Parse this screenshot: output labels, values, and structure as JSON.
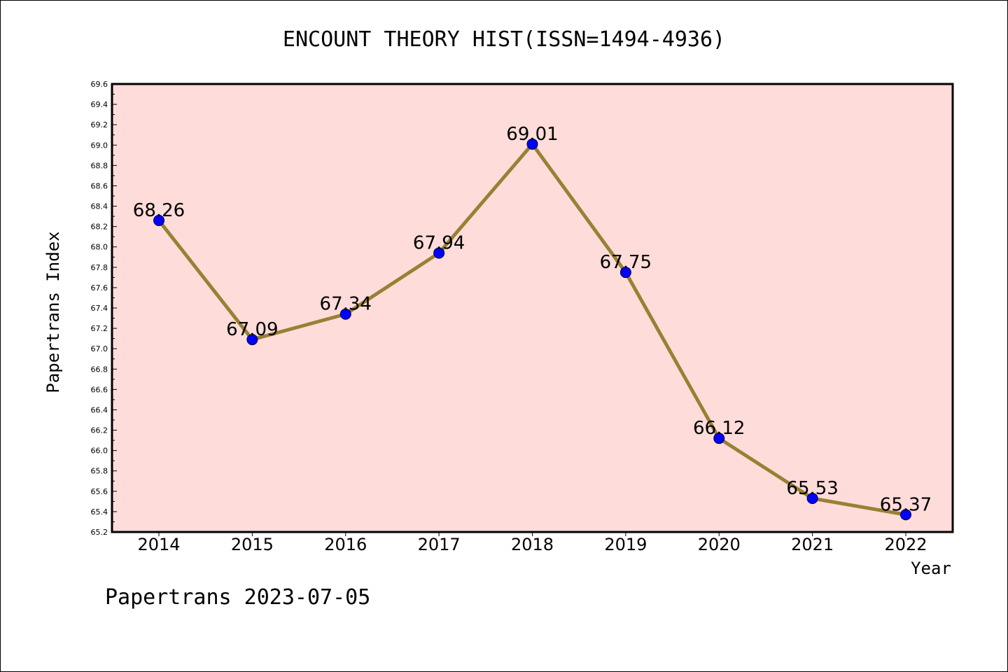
{
  "chart_data": {
    "type": "line",
    "title": "ENCOUNT THEORY HIST(ISSN=1494-4936)",
    "xlabel": "Year",
    "ylabel": "Papertrans Index",
    "categories": [
      "2014",
      "2015",
      "2016",
      "2017",
      "2018",
      "2019",
      "2020",
      "2021",
      "2022"
    ],
    "series": [
      {
        "values": [
          68.26,
          67.09,
          67.34,
          67.94,
          69.01,
          67.75,
          66.12,
          65.53,
          65.37
        ]
      }
    ],
    "data_labels": [
      "68.26",
      "67.09",
      "67.34",
      "67.94",
      "69.01",
      "67.75",
      "66.12",
      "65.53",
      "65.37"
    ],
    "ylim": [
      65.2,
      69.6
    ],
    "yticks": [
      "65.2",
      "65.4",
      "65.6",
      "65.8",
      "66.0",
      "66.2",
      "66.4",
      "66.6",
      "66.8",
      "67.0",
      "67.2",
      "67.4",
      "67.6",
      "67.8",
      "68.0",
      "68.2",
      "68.4",
      "68.6",
      "68.8",
      "69.0",
      "69.2",
      "69.4",
      "69.6"
    ],
    "grid": false,
    "legend": "none",
    "colors": {
      "plot_background": "#FDDCDA",
      "line": "#998033",
      "marker": "#0000FF"
    }
  },
  "footer": {
    "text": "Papertrans 2023-07-05"
  }
}
